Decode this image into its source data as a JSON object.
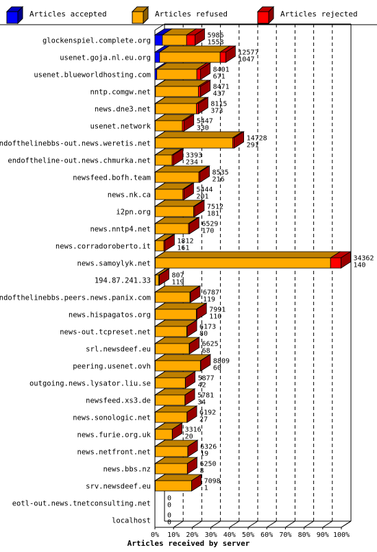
{
  "chart_data": {
    "type": "bar",
    "orientation": "horizontal",
    "stacked": true,
    "style": "3d",
    "xlabel": "Articles received by server",
    "x_ticks": [
      "0%",
      "10%",
      "20%",
      "30%",
      "40%",
      "50%",
      "60%",
      "70%",
      "80%",
      "90%",
      "100%"
    ],
    "xlim": [
      0,
      100
    ],
    "grid": true,
    "legend_position": "top",
    "colors": {
      "accepted": "#0000ff",
      "refused": "#ffaa00",
      "rejected": "#ff0000"
    },
    "series": [
      {
        "key": "accepted",
        "name": "Articles accepted",
        "color": "#0000ff"
      },
      {
        "key": "refused",
        "name": "Articles refused",
        "color": "#ffaa00"
      },
      {
        "key": "rejected",
        "name": "Articles rejected",
        "color": "#ff0000"
      }
    ],
    "rows": [
      {
        "server": "glockenspiel.complete.org",
        "total": "5986",
        "rejected_count": "1558",
        "accepted_pct": 4,
        "refused_pct": 13,
        "rejected_pct": 4.5
      },
      {
        "server": "usenet.goja.nl.eu.org",
        "total": "12577",
        "rejected_count": "1047",
        "accepted_pct": 2.5,
        "refused_pct": 32.5,
        "rejected_pct": 3
      },
      {
        "server": "usenet.blueworldhosting.com",
        "total": "8401",
        "rejected_count": "671",
        "accepted_pct": 1,
        "refused_pct": 21.5,
        "rejected_pct": 2
      },
      {
        "server": "nntp.comgw.net",
        "total": "8471",
        "rejected_count": "437",
        "accepted_pct": 0.3,
        "refused_pct": 23,
        "rejected_pct": 1.2
      },
      {
        "server": "news.dne3.net",
        "total": "8115",
        "rejected_count": "373",
        "accepted_pct": 0.3,
        "refused_pct": 22,
        "rejected_pct": 1
      },
      {
        "server": "usenet.network",
        "total": "5447",
        "rejected_count": "330",
        "accepted_pct": 0.2,
        "refused_pct": 14.5,
        "rejected_pct": 1
      },
      {
        "server": "endofthelinebbs-out.news.weretis.net",
        "total": "14728",
        "rejected_count": "291",
        "accepted_pct": 0.2,
        "refused_pct": 41.5,
        "rejected_pct": 0.8
      },
      {
        "server": "endoftheline-out.news.chmurka.net",
        "total": "3393",
        "rejected_count": "234",
        "accepted_pct": 0.2,
        "refused_pct": 9,
        "rejected_pct": 0.7
      },
      {
        "server": "newsfeed.bofh.team",
        "total": "8535",
        "rejected_count": "216",
        "accepted_pct": 0.2,
        "refused_pct": 23.3,
        "rejected_pct": 0.6
      },
      {
        "server": "news.nk.ca",
        "total": "5444",
        "rejected_count": "201",
        "accepted_pct": 0.2,
        "refused_pct": 14.8,
        "rejected_pct": 0.6
      },
      {
        "server": "i2pn.org",
        "total": "7512",
        "rejected_count": "181",
        "accepted_pct": 0.2,
        "refused_pct": 20.6,
        "rejected_pct": 0.5
      },
      {
        "server": "news.nntp4.net",
        "total": "6529",
        "rejected_count": "170",
        "accepted_pct": 0.2,
        "refused_pct": 17.8,
        "rejected_pct": 0.5
      },
      {
        "server": "news.corradoroberto.it",
        "total": "1812",
        "rejected_count": "161",
        "accepted_pct": 0.2,
        "refused_pct": 4.6,
        "rejected_pct": 0.5
      },
      {
        "server": "news.samoylyk.net",
        "total": "34362",
        "rejected_count": "140",
        "accepted_pct": 0.2,
        "refused_pct": 94,
        "rejected_pct": 5.6
      },
      {
        "server": "194.87.241.33",
        "total": "807",
        "rejected_count": "119",
        "accepted_pct": 0.2,
        "refused_pct": 1.9,
        "rejected_pct": 0.3
      },
      {
        "server": "endofthelinebbs.peers.news.panix.com",
        "total": "6787",
        "rejected_count": "119",
        "accepted_pct": 0.2,
        "refused_pct": 18.6,
        "rejected_pct": 0.3
      },
      {
        "server": "news.hispagatos.org",
        "total": "7991",
        "rejected_count": "110",
        "accepted_pct": 0.2,
        "refused_pct": 22,
        "rejected_pct": 0.3
      },
      {
        "server": "news-out.tcpreset.net",
        "total": "6173",
        "rejected_count": "80",
        "accepted_pct": 0.2,
        "refused_pct": 16.9,
        "rejected_pct": 0.2
      },
      {
        "server": "srl.newsdeef.eu",
        "total": "6625",
        "rejected_count": "68",
        "accepted_pct": 0.2,
        "refused_pct": 18.2,
        "rejected_pct": 0.2
      },
      {
        "server": "peering.usenet.ovh",
        "total": "8809",
        "rejected_count": "60",
        "accepted_pct": 0.2,
        "refused_pct": 24.2,
        "rejected_pct": 0.2
      },
      {
        "server": "outgoing.news.lysator.liu.se",
        "total": "5877",
        "rejected_count": "42",
        "accepted_pct": 0.2,
        "refused_pct": 16.1,
        "rejected_pct": 0.1
      },
      {
        "server": "newsfeed.xs3.de",
        "total": "5781",
        "rejected_count": "34",
        "accepted_pct": 0.2,
        "refused_pct": 15.9,
        "rejected_pct": 0.1
      },
      {
        "server": "news.sonologic.net",
        "total": "6192",
        "rejected_count": "27",
        "accepted_pct": 0.2,
        "refused_pct": 17,
        "rejected_pct": 0.1
      },
      {
        "server": "news.furie.org.uk",
        "total": "3316",
        "rejected_count": "20",
        "accepted_pct": 0.2,
        "refused_pct": 9.1,
        "rejected_pct": 0.1
      },
      {
        "server": "news.netfront.net",
        "total": "6326",
        "rejected_count": "19",
        "accepted_pct": 0.2,
        "refused_pct": 17.4,
        "rejected_pct": 0.1
      },
      {
        "server": "news.bbs.nz",
        "total": "6250",
        "rejected_count": "8",
        "accepted_pct": 0.2,
        "refused_pct": 17.2,
        "rejected_pct": 0.05
      },
      {
        "server": "srv.newsdeef.eu",
        "total": "7098",
        "rejected_count": "1",
        "accepted_pct": 0.2,
        "refused_pct": 19.5,
        "rejected_pct": 0.01
      },
      {
        "server": "eotl-out.news.tnetconsulting.net",
        "total": "0",
        "rejected_count": "0",
        "accepted_pct": 0,
        "refused_pct": 0,
        "rejected_pct": 0
      },
      {
        "server": "localhost",
        "total": "0",
        "rejected_count": "0",
        "accepted_pct": 0,
        "refused_pct": 0,
        "rejected_pct": 0
      }
    ]
  }
}
